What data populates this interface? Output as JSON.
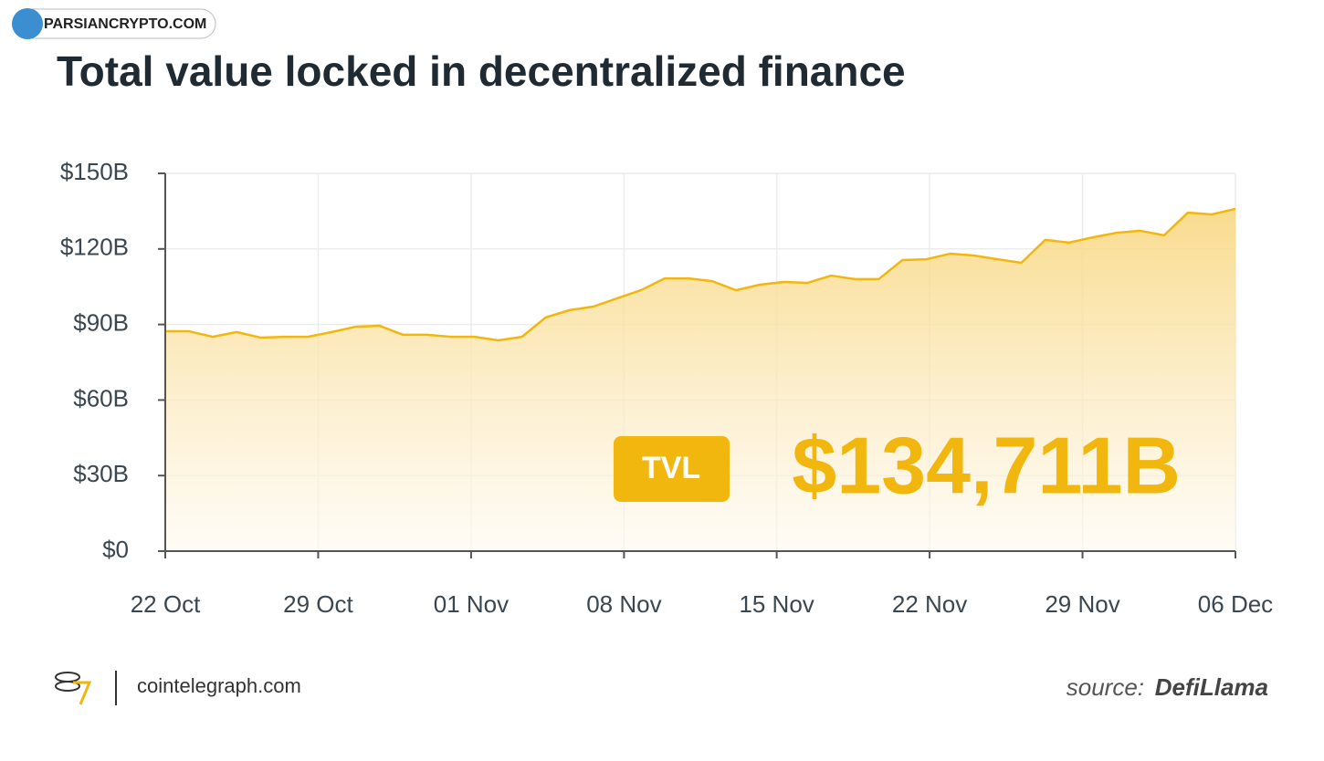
{
  "watermark": "PARSIANCRYPTO.COM",
  "chart_data": {
    "type": "area",
    "title": "Total value locked in decentralized finance",
    "x": [
      0,
      1,
      2,
      3,
      4,
      5,
      6,
      7,
      8,
      9,
      10,
      11,
      12,
      13,
      14,
      15,
      16,
      17,
      18,
      19,
      20,
      21,
      22,
      23,
      24,
      25,
      26,
      27,
      28,
      29,
      30,
      31,
      32,
      33,
      34,
      35,
      36,
      37,
      38,
      39,
      40,
      41,
      42,
      43,
      44,
      45
    ],
    "series": [
      {
        "name": "TVL",
        "color": "#f2b70f",
        "values": [
          87.3,
          87.3,
          85.1,
          87.0,
          84.8,
          85.1,
          85.1,
          87.0,
          89.1,
          89.5,
          85.9,
          85.9,
          85.1,
          85.1,
          83.7,
          85.1,
          92.8,
          95.7,
          97.1,
          100.4,
          103.6,
          108.3,
          108.3,
          107.2,
          103.6,
          105.8,
          106.9,
          106.5,
          109.4,
          108.0,
          108.0,
          115.6,
          115.9,
          118.1,
          117.4,
          115.9,
          114.5,
          123.6,
          122.5,
          124.6,
          126.4,
          127.2,
          125.4,
          134.4,
          133.7,
          135.9
        ]
      }
    ],
    "xlim": [
      0,
      45
    ],
    "xticks": [
      {
        "value": 0,
        "label": "22 Oct"
      },
      {
        "value": 6.43,
        "label": "29 Oct"
      },
      {
        "value": 12.86,
        "label": "01 Nov"
      },
      {
        "value": 19.29,
        "label": "08 Nov"
      },
      {
        "value": 25.71,
        "label": "15 Nov"
      },
      {
        "value": 32.14,
        "label": "22 Nov"
      },
      {
        "value": 38.57,
        "label": "29 Nov"
      },
      {
        "value": 45,
        "label": "06 Dec"
      }
    ],
    "ylim": [
      0,
      150
    ],
    "yticks": [
      {
        "value": 0,
        "label": "$0"
      },
      {
        "value": 30,
        "label": "$30B"
      },
      {
        "value": 60,
        "label": "$60B"
      },
      {
        "value": 90,
        "label": "$90B"
      },
      {
        "value": 120,
        "label": "$120B"
      },
      {
        "value": 150,
        "label": "$150B"
      }
    ],
    "grid": true,
    "annotation_badge": "TVL",
    "annotation_value": "$134,711B"
  },
  "footer": {
    "brand": "cointelegraph.com",
    "source_prefix": "source:",
    "source_name": "DefiLlama"
  }
}
